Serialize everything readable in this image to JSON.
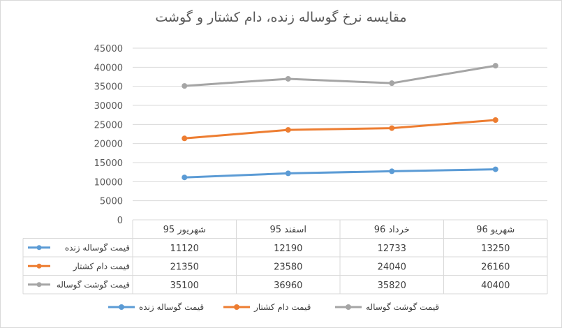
{
  "chart_data": {
    "type": "line",
    "title": "مقایسه نرخ گوساله زنده، دام کشتار و گوشت",
    "categories": [
      "شهریور 95",
      "اسفند 95",
      "خرداد 96",
      "شهریو 96"
    ],
    "ylim": [
      0,
      45000
    ],
    "yticks": [
      0,
      5000,
      10000,
      15000,
      20000,
      25000,
      30000,
      35000,
      40000,
      45000
    ],
    "grid": true,
    "legend_position": "bottom",
    "data_table": true,
    "series": [
      {
        "name": "قیمت گوساله زنده",
        "color": "#5b9bd5",
        "values": [
          11120,
          12190,
          12733,
          13250
        ]
      },
      {
        "name": "قیمت دام کشتار",
        "color": "#ed7d31",
        "values": [
          21350,
          23580,
          24040,
          26160
        ]
      },
      {
        "name": "قیمت گوشت گوساله",
        "color": "#a5a5a5",
        "values": [
          35100,
          36960,
          35820,
          40400
        ]
      }
    ]
  }
}
